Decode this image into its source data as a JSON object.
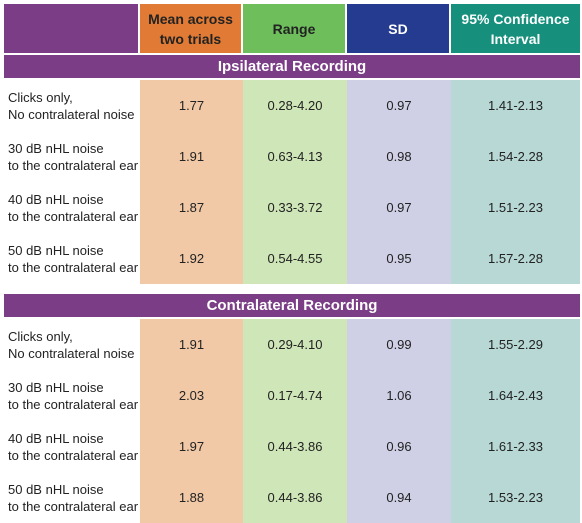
{
  "headers": {
    "mean": [
      "Mean across",
      "two trials"
    ],
    "range": "Range",
    "sd": "SD",
    "ci": [
      "95% Confidence",
      "Interval"
    ]
  },
  "sections": [
    {
      "title": "Ipsilateral Recording",
      "rows": [
        {
          "label": [
            "Clicks only,",
            "No contralateral noise"
          ],
          "mean": "1.77",
          "range": "0.28-4.20",
          "sd": "0.97",
          "ci": "1.41-2.13"
        },
        {
          "label": [
            "30 dB nHL noise",
            "to the contralateral ear"
          ],
          "mean": "1.91",
          "range": "0.63-4.13",
          "sd": "0.98",
          "ci": "1.54-2.28"
        },
        {
          "label": [
            "40 dB nHL noise",
            "to the contralateral ear"
          ],
          "mean": "1.87",
          "range": "0.33-3.72",
          "sd": "0.97",
          "ci": "1.51-2.23"
        },
        {
          "label": [
            "50 dB nHL noise",
            "to the contralateral ear"
          ],
          "mean": "1.92",
          "range": "0.54-4.55",
          "sd": "0.95",
          "ci": "1.57-2.28"
        }
      ]
    },
    {
      "title": "Contralateral Recording",
      "rows": [
        {
          "label": [
            "Clicks only,",
            "No contralateral noise"
          ],
          "mean": "1.91",
          "range": "0.29-4.10",
          "sd": "0.99",
          "ci": "1.55-2.29"
        },
        {
          "label": [
            "30 dB nHL noise",
            "to the contralateral ear"
          ],
          "mean": "2.03",
          "range": "0.17-4.74",
          "sd": "1.06",
          "ci": "1.64-2.43"
        },
        {
          "label": [
            "40 dB nHL noise",
            "to the contralateral ear"
          ],
          "mean": "1.97",
          "range": "0.44-3.86",
          "sd": "0.96",
          "ci": "1.61-2.33"
        },
        {
          "label": [
            "50 dB nHL noise",
            "to the contralateral ear"
          ],
          "mean": "1.88",
          "range": "0.44-3.86",
          "sd": "0.94",
          "ci": "1.53-2.23"
        }
      ]
    }
  ]
}
